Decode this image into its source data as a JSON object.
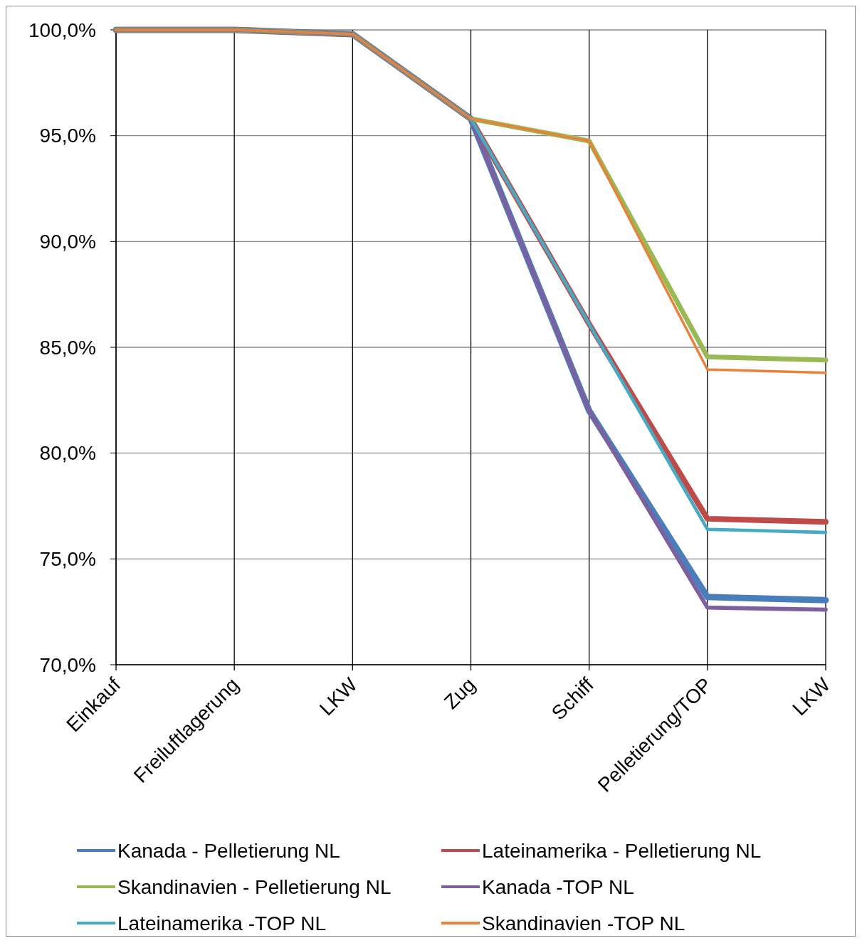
{
  "chart_data": {
    "type": "line",
    "categories": [
      "Einkauf",
      "Freiluftlagerung",
      "LKW",
      "Zug",
      "Schiff",
      "Pelletierung/TOP",
      "LKW"
    ],
    "series": [
      {
        "name": "Kanada - Pelletierung NL",
        "color": "#4a7ebb",
        "values": [
          100,
          100,
          99.8,
          95.8,
          82.0,
          73.2,
          73.05
        ]
      },
      {
        "name": "Lateinamerika - Pelletierung NL",
        "color": "#be4b48",
        "values": [
          100,
          100,
          99.8,
          95.8,
          86.1,
          76.9,
          76.75
        ]
      },
      {
        "name": "Skandinavien - Pelletierung NL",
        "color": "#98b954",
        "values": [
          100,
          100,
          99.8,
          95.8,
          94.75,
          84.55,
          84.4
        ]
      },
      {
        "name": "Kanada -TOP NL",
        "color": "#7d60a0",
        "values": [
          100,
          100,
          99.8,
          95.8,
          82.0,
          72.7,
          72.6
        ]
      },
      {
        "name": "Lateinamerika -TOP NL",
        "color": "#46aac5",
        "values": [
          100,
          100,
          99.8,
          95.8,
          86.1,
          76.4,
          76.25
        ]
      },
      {
        "name": "Skandinavien -TOP NL",
        "color": "#e8823a",
        "values": [
          100,
          100,
          99.8,
          95.8,
          94.75,
          83.95,
          83.8
        ]
      }
    ],
    "ylim": [
      70,
      100
    ],
    "yticks": [
      {
        "value": 70,
        "label": "70,0%"
      },
      {
        "value": 75,
        "label": "75,0%"
      },
      {
        "value": 80,
        "label": "80,0%"
      },
      {
        "value": 85,
        "label": "85,0%"
      },
      {
        "value": 90,
        "label": "90,0%"
      },
      {
        "value": 95,
        "label": "95,0%"
      },
      {
        "value": 100,
        "label": "100,0%"
      }
    ],
    "grid": true,
    "legend": "bottom",
    "marker": "none",
    "line_style": "solid"
  }
}
